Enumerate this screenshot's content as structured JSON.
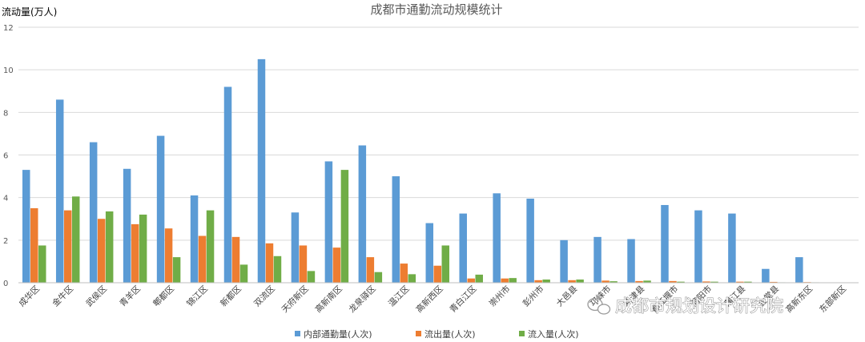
{
  "chart_data": {
    "type": "bar",
    "title": "成都市通勤流动规模统计",
    "ylabel": "流动量(万人)",
    "xlabel": "",
    "ylim": [
      0,
      12
    ],
    "yticks": [
      0,
      2,
      4,
      6,
      8,
      10,
      12
    ],
    "grid": true,
    "legend": "bottom",
    "categories": [
      "成华区",
      "金牛区",
      "武侯区",
      "青羊区",
      "郫都区",
      "锦江区",
      "新都区",
      "双流区",
      "天府新区",
      "高新南区",
      "龙泉驿区",
      "温江区",
      "高新西区",
      "青白江区",
      "崇州市",
      "彭州市",
      "大邑县",
      "邛崃市",
      "新津县",
      "都江堰市",
      "简阳市",
      "蒲江县",
      "金堂县",
      "高新东区",
      "东部新区"
    ],
    "series": [
      {
        "name": "内部通勤量(人次)",
        "color": "#5B9BD5",
        "values": [
          5.3,
          8.6,
          6.6,
          5.35,
          6.9,
          4.1,
          9.2,
          10.5,
          3.3,
          5.7,
          6.45,
          5.0,
          2.8,
          3.25,
          4.2,
          3.95,
          2.0,
          2.15,
          2.05,
          3.65,
          3.4,
          3.25,
          0.65,
          1.2,
          0
        ]
      },
      {
        "name": "流出量(人次)",
        "color": "#ED7D31",
        "values": [
          3.5,
          3.4,
          3.0,
          2.75,
          2.55,
          2.2,
          2.15,
          1.85,
          1.75,
          1.65,
          1.2,
          0.9,
          0.8,
          0.2,
          0.2,
          0.12,
          0.12,
          0.1,
          0.08,
          0.08,
          0.06,
          0.05,
          0.04,
          0.03,
          0
        ]
      },
      {
        "name": "流入量(人次)",
        "color": "#70AD47",
        "values": [
          1.75,
          4.05,
          3.35,
          3.2,
          1.2,
          3.4,
          0.85,
          1.25,
          0.55,
          5.3,
          0.5,
          0.4,
          1.75,
          0.38,
          0.22,
          0.15,
          0.15,
          0.07,
          0.1,
          0.05,
          0.05,
          0.05,
          0.02,
          0.02,
          0
        ]
      }
    ]
  },
  "watermark": "成都市规划设计研究院"
}
